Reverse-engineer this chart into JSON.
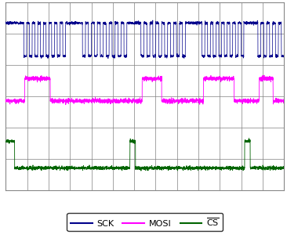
{
  "bg_color": "#ffffff",
  "plot_bg_color": "#ffffff",
  "grid_color": "#808080",
  "sck_color": "#00008B",
  "mosi_color": "#FF00FF",
  "cs_color": "#006400",
  "n_points": 3000,
  "sck_base": 0.68,
  "mosi_base": 0.0,
  "cs_base": -0.68,
  "sck_high": 0.82,
  "sck_low": 0.45,
  "mosi_high": 0.2,
  "mosi_low": -0.05,
  "cs_high": -0.5,
  "cs_low": -0.8,
  "noise_amp": 0.008,
  "figsize": [
    3.66,
    3.04
  ],
  "dpi": 100
}
